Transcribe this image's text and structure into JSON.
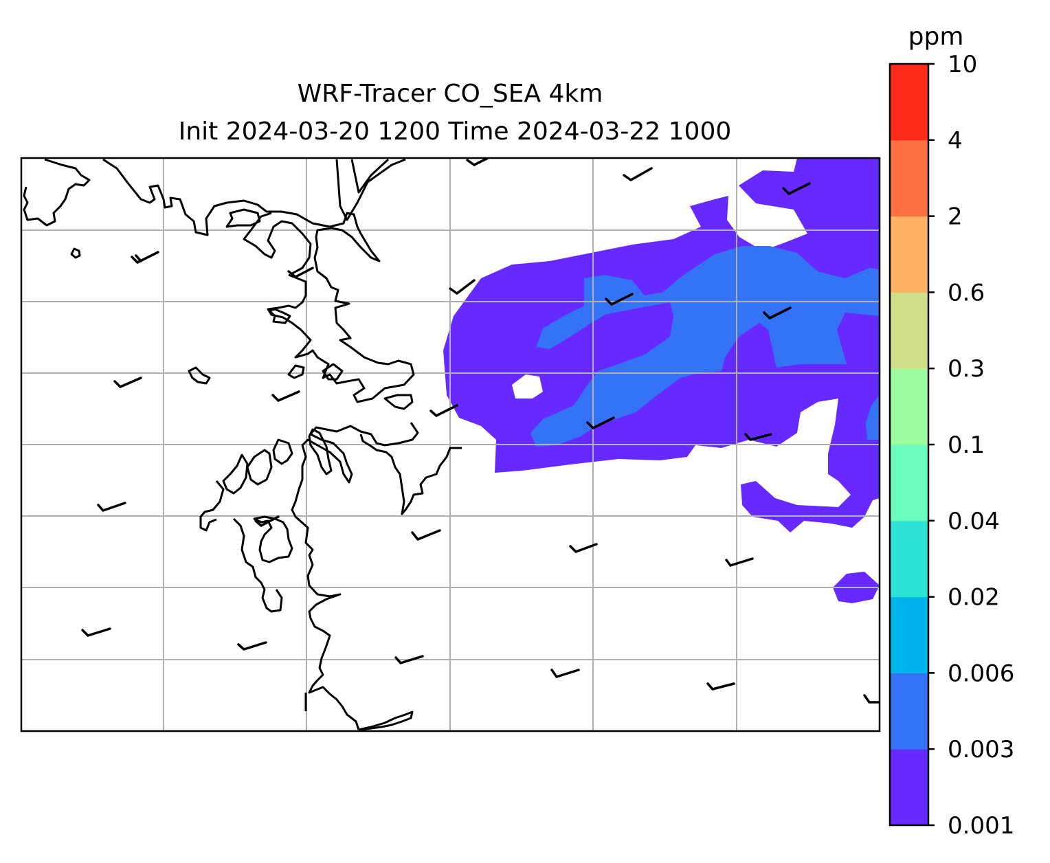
{
  "title_line1": "WRF-Tracer CO_SEA 4km",
  "title_line2": "Init 2024-03-20 1200 Time 2024-03-22 1000",
  "colorbar": {
    "unit": "ppm",
    "levels": [
      "0.001",
      "0.003",
      "0.006",
      "0.02",
      "0.04",
      "0.1",
      "0.3",
      "0.6",
      "2",
      "4",
      "10"
    ],
    "colors": [
      "#6629ff",
      "#3473f6",
      "#00b5eb",
      "#2fe2d8",
      "#6afdbe",
      "#9cfca0",
      "#cfe089",
      "#ffb264",
      "#ff7041",
      "#ff2a1a"
    ]
  },
  "map": {
    "gridlines": true,
    "gridline_color": "#b0b0b0",
    "coastline_color": "#000000",
    "wind_barbs": "shown"
  }
}
